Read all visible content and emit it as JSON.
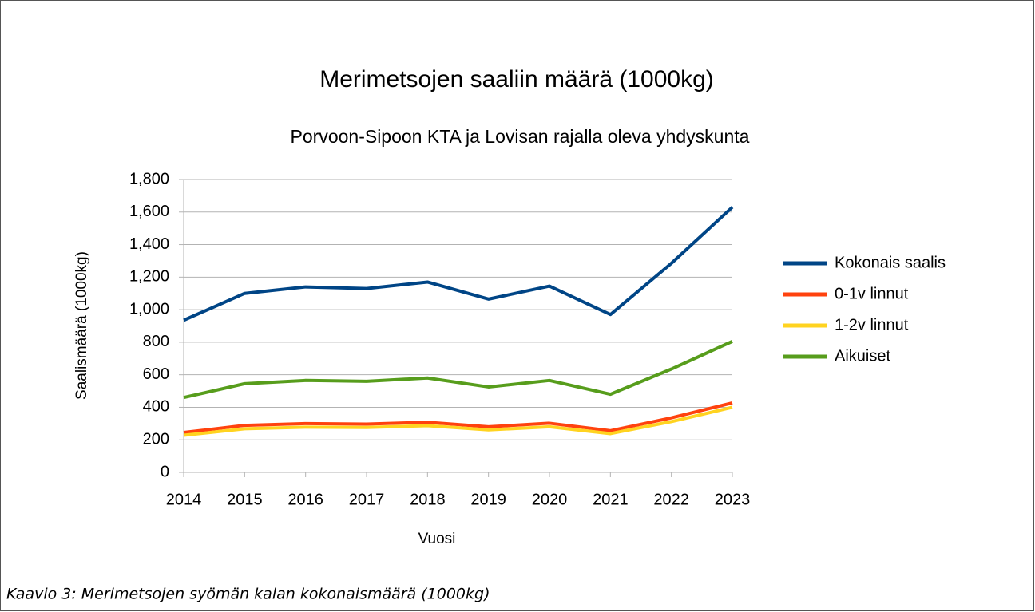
{
  "chart_data": {
    "type": "line",
    "title": "Merimetsojen saaliin määrä (1000kg)",
    "subtitle": "Porvoon-Sipoon KTA ja Lovisan rajalla oleva yhdyskunta",
    "x_label": "Vuosi",
    "y_label": "Saalismäärä (1000kg)",
    "categories": [
      "2014",
      "2015",
      "2016",
      "2017",
      "2018",
      "2019",
      "2020",
      "2021",
      "2022",
      "2023"
    ],
    "series": [
      {
        "name": "Kokonais saalis",
        "color": "#004586",
        "values": [
          935,
          1100,
          1140,
          1130,
          1170,
          1065,
          1145,
          970,
          1285,
          1630
        ]
      },
      {
        "name": "0-1v linnut",
        "color": "#ff420e",
        "values": [
          245,
          289,
          300,
          297,
          308,
          280,
          302,
          256,
          335,
          427
        ]
      },
      {
        "name": "1-2v linnut",
        "color": "#ffd320",
        "values": [
          228,
          268,
          278,
          276,
          287,
          261,
          280,
          238,
          312,
          400
        ]
      },
      {
        "name": "Aikuiset",
        "color": "#579d1c",
        "values": [
          460,
          545,
          565,
          560,
          580,
          525,
          565,
          480,
          635,
          805
        ]
      }
    ],
    "ylim": [
      0,
      1800
    ],
    "yticks": [
      0,
      200,
      400,
      600,
      800,
      {
        "value": 1000,
        "label": "1,000"
      },
      {
        "value": 1200,
        "label": "1,200"
      },
      {
        "value": 1400,
        "label": "1,400"
      },
      {
        "value": 1600,
        "label": "1,600"
      },
      {
        "value": 1800,
        "label": "1,800"
      }
    ],
    "grid": true,
    "legend": "right",
    "caption": "Kaavio 3: Merimetsojen syömän kalan kokonaismäärä (1000kg)"
  }
}
